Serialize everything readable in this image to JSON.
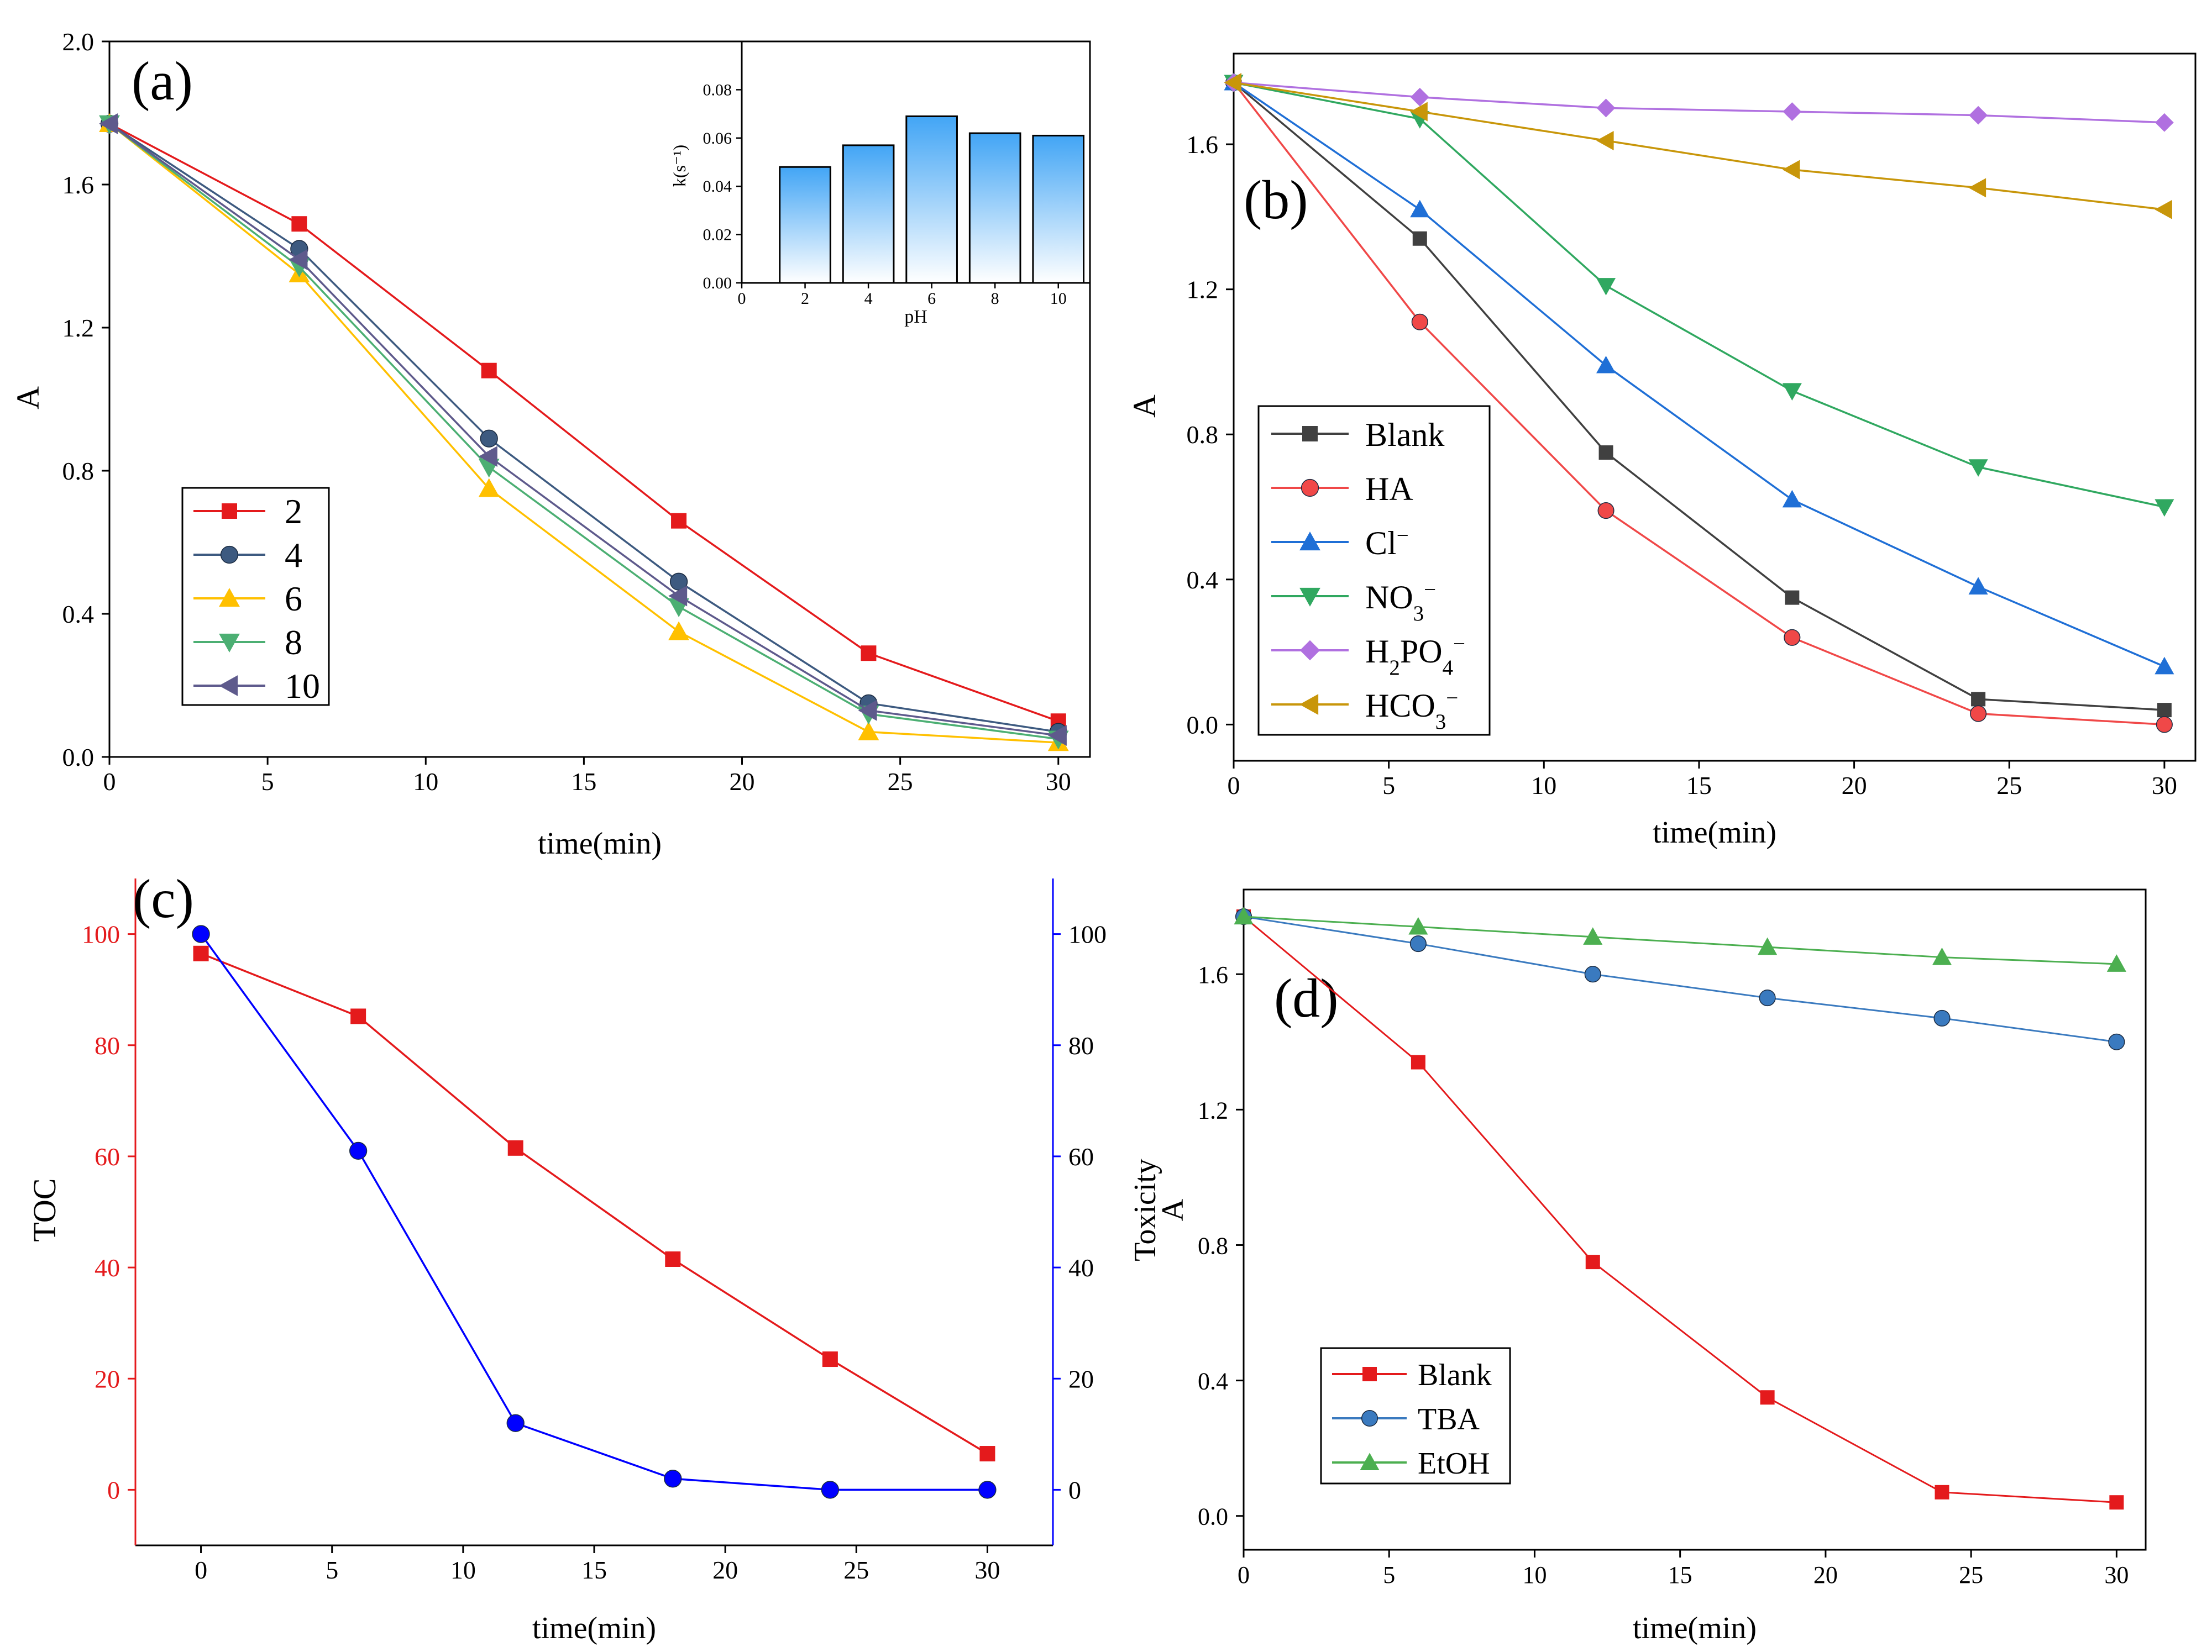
{
  "colors": {
    "axis": "#000000",
    "red": "#e41a1c",
    "steel": "#3d5a80",
    "yellow": "#ffc000",
    "green": "#4caf73",
    "purple": "#5e5a8c",
    "gray": "#404040",
    "coral": "#f04848",
    "blue": "#1f6fd6",
    "teal_green": "#30a860",
    "violet": "#b070e0",
    "gold": "#c8960a",
    "dual_blue": "#0000ff",
    "tba_blue": "#3a7abf",
    "etoh_green": "#4caf50"
  },
  "chart_data": [
    {
      "id": "a",
      "panel_label": "(a)",
      "type": "line",
      "xlabel": "time(min)",
      "ylabel": "A",
      "xlim": [
        0,
        31
      ],
      "ylim": [
        0,
        2.0
      ],
      "xticks": [
        "0",
        "5",
        "10",
        "15",
        "20",
        "25",
        "30"
      ],
      "yticks": [
        "0.0",
        "0.4",
        "0.8",
        "1.2",
        "1.6",
        "2.0"
      ],
      "x": [
        0,
        6,
        12,
        18,
        24,
        30
      ],
      "legend_position": "lower-left",
      "series": [
        {
          "name": "2",
          "marker": "square",
          "color": "#e41a1c",
          "values": [
            1.77,
            1.49,
            1.08,
            0.66,
            0.29,
            0.1
          ]
        },
        {
          "name": "4",
          "marker": "circle",
          "color": "#3d5a80",
          "values": [
            1.77,
            1.42,
            0.89,
            0.49,
            0.15,
            0.07
          ]
        },
        {
          "name": "6",
          "marker": "triangle-up",
          "color": "#ffc000",
          "values": [
            1.77,
            1.35,
            0.75,
            0.35,
            0.07,
            0.04
          ]
        },
        {
          "name": "8",
          "marker": "triangle-down",
          "color": "#4caf73",
          "values": [
            1.77,
            1.37,
            0.81,
            0.42,
            0.12,
            0.05
          ]
        },
        {
          "name": "10",
          "marker": "triangle-left",
          "color": "#5e5a8c",
          "values": [
            1.77,
            1.39,
            0.84,
            0.45,
            0.13,
            0.06
          ]
        }
      ]
    },
    {
      "id": "a_inset",
      "type": "bar",
      "xlabel": "pH",
      "ylabel": "k(s⁻¹)",
      "categories": [
        "2",
        "4",
        "6",
        "8",
        "10"
      ],
      "values": [
        0.048,
        0.057,
        0.069,
        0.062,
        0.061
      ],
      "xlim": [
        0,
        11
      ],
      "ylim": [
        0,
        0.1
      ],
      "xticks": [
        "0",
        "2",
        "4",
        "6",
        "8",
        "10"
      ],
      "yticks": [
        "0.00",
        "0.02",
        "0.04",
        "0.06",
        "0.08"
      ]
    },
    {
      "id": "b",
      "panel_label": "(b)",
      "type": "line",
      "xlabel": "time(min)",
      "ylabel": "A",
      "xlim": [
        0,
        31
      ],
      "ylim": [
        -0.1,
        1.85
      ],
      "xticks": [
        "0",
        "5",
        "10",
        "15",
        "20",
        "25",
        "30"
      ],
      "yticks": [
        "0.0",
        "0.4",
        "0.8",
        "1.2",
        "1.6"
      ],
      "x": [
        0,
        6,
        12,
        18,
        24,
        30
      ],
      "legend_position": "lower-left",
      "series": [
        {
          "name": "Blank",
          "marker": "square",
          "color": "#404040",
          "values": [
            1.77,
            1.34,
            0.75,
            0.35,
            0.07,
            0.04
          ]
        },
        {
          "name": "HA",
          "marker": "circle",
          "color": "#f04848",
          "values": [
            1.77,
            1.11,
            0.59,
            0.24,
            0.03,
            0.0
          ]
        },
        {
          "name": "Cl",
          "sup": "−",
          "marker": "triangle-up",
          "color": "#1f6fd6",
          "values": [
            1.77,
            1.42,
            0.99,
            0.62,
            0.38,
            0.16
          ]
        },
        {
          "name": "NO",
          "sub": "3",
          "sup": "−",
          "marker": "triangle-down",
          "color": "#30a860",
          "values": [
            1.77,
            1.67,
            1.21,
            0.92,
            0.71,
            0.6
          ]
        },
        {
          "name": "H",
          "sub": "2",
          "name2": "PO",
          "sub2": "4",
          "sup": "−",
          "marker": "diamond",
          "color": "#b070e0",
          "values": [
            1.77,
            1.73,
            1.7,
            1.69,
            1.68,
            1.66
          ]
        },
        {
          "name": "HCO",
          "sub": "3",
          "sup": "−",
          "marker": "triangle-left",
          "color": "#c8960a",
          "values": [
            1.77,
            1.69,
            1.61,
            1.53,
            1.48,
            1.42
          ]
        }
      ]
    },
    {
      "id": "c",
      "panel_label": "(c)",
      "type": "line",
      "xlabel": "time(min)",
      "ylabel": "TOC",
      "xlim": [
        -2.5,
        32.5
      ],
      "ylim": [
        -10,
        110
      ],
      "xticks": [
        "0",
        "5",
        "10",
        "15",
        "20",
        "25",
        "30"
      ],
      "yticks": [
        "0",
        "20",
        "40",
        "60",
        "80",
        "100"
      ],
      "x": [
        0,
        6,
        12,
        18,
        24,
        30
      ],
      "series": [
        {
          "name": "TOC",
          "axis": "left",
          "marker": "square",
          "color": "#e41a1c",
          "values": [
            96.5,
            85.2,
            61.5,
            41.5,
            23.5,
            6.5
          ]
        },
        {
          "name": "right-axis",
          "axis": "right",
          "marker": "circle",
          "color": "#0000ff",
          "values": [
            100,
            61,
            12,
            2,
            0,
            0
          ]
        }
      ]
    },
    {
      "id": "d",
      "panel_label": "(d)",
      "type": "line",
      "xlabel": "time(min)",
      "ylabel_line1": "Toxicity",
      "ylabel_line2": "A",
      "xlim": [
        0,
        31
      ],
      "ylim": [
        -0.1,
        1.85
      ],
      "xticks": [
        "0",
        "5",
        "10",
        "15",
        "20",
        "25",
        "30"
      ],
      "yticks": [
        "0.0",
        "0.4",
        "0.8",
        "1.2",
        "1.6"
      ],
      "x": [
        0,
        6,
        12,
        18,
        24,
        30
      ],
      "legend_position": "lower-left",
      "series": [
        {
          "name": "Blank",
          "marker": "square",
          "color": "#e41a1c",
          "values": [
            1.77,
            1.34,
            0.75,
            0.35,
            0.07,
            0.04
          ]
        },
        {
          "name": "TBA",
          "marker": "circle",
          "color": "#3a7abf",
          "values": [
            1.77,
            1.69,
            1.6,
            1.53,
            1.47,
            1.4
          ]
        },
        {
          "name": "EtOH",
          "marker": "triangle-up",
          "color": "#4caf50",
          "values": [
            1.77,
            1.74,
            1.71,
            1.68,
            1.65,
            1.63
          ]
        }
      ]
    }
  ]
}
